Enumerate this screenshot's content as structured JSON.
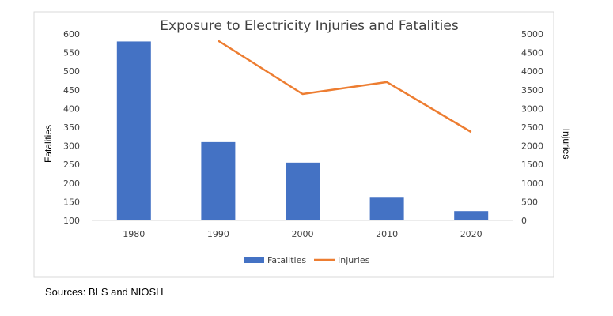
{
  "chart_data": {
    "type": "bar",
    "title": "Exposure to Electricity Injuries and Fatalities",
    "categories": [
      "1980",
      "1990",
      "2000",
      "2010",
      "2020"
    ],
    "series": [
      {
        "name": "Fatalities",
        "type": "bar",
        "axis": "left",
        "values": [
          580,
          310,
          255,
          163,
          125
        ],
        "color": "#4472C4"
      },
      {
        "name": "Injuries",
        "type": "line",
        "axis": "right",
        "values": [
          null,
          4820,
          3390,
          3710,
          2370
        ],
        "color": "#ED7D31"
      }
    ],
    "ylabel": "Fatalities",
    "y2label": "Injuries",
    "ylim": [
      100,
      600
    ],
    "y2lim": [
      0,
      5000
    ],
    "y_ticks": [
      "100",
      "150",
      "200",
      "250",
      "300",
      "350",
      "400",
      "450",
      "500",
      "550",
      "600"
    ],
    "y2_ticks": [
      "0",
      "500",
      "1000",
      "1500",
      "2000",
      "2500",
      "3000",
      "3500",
      "4000",
      "4500",
      "5000"
    ],
    "grid": false,
    "legend": "bottom"
  },
  "source_note": "Sources: BLS and NIOSH"
}
